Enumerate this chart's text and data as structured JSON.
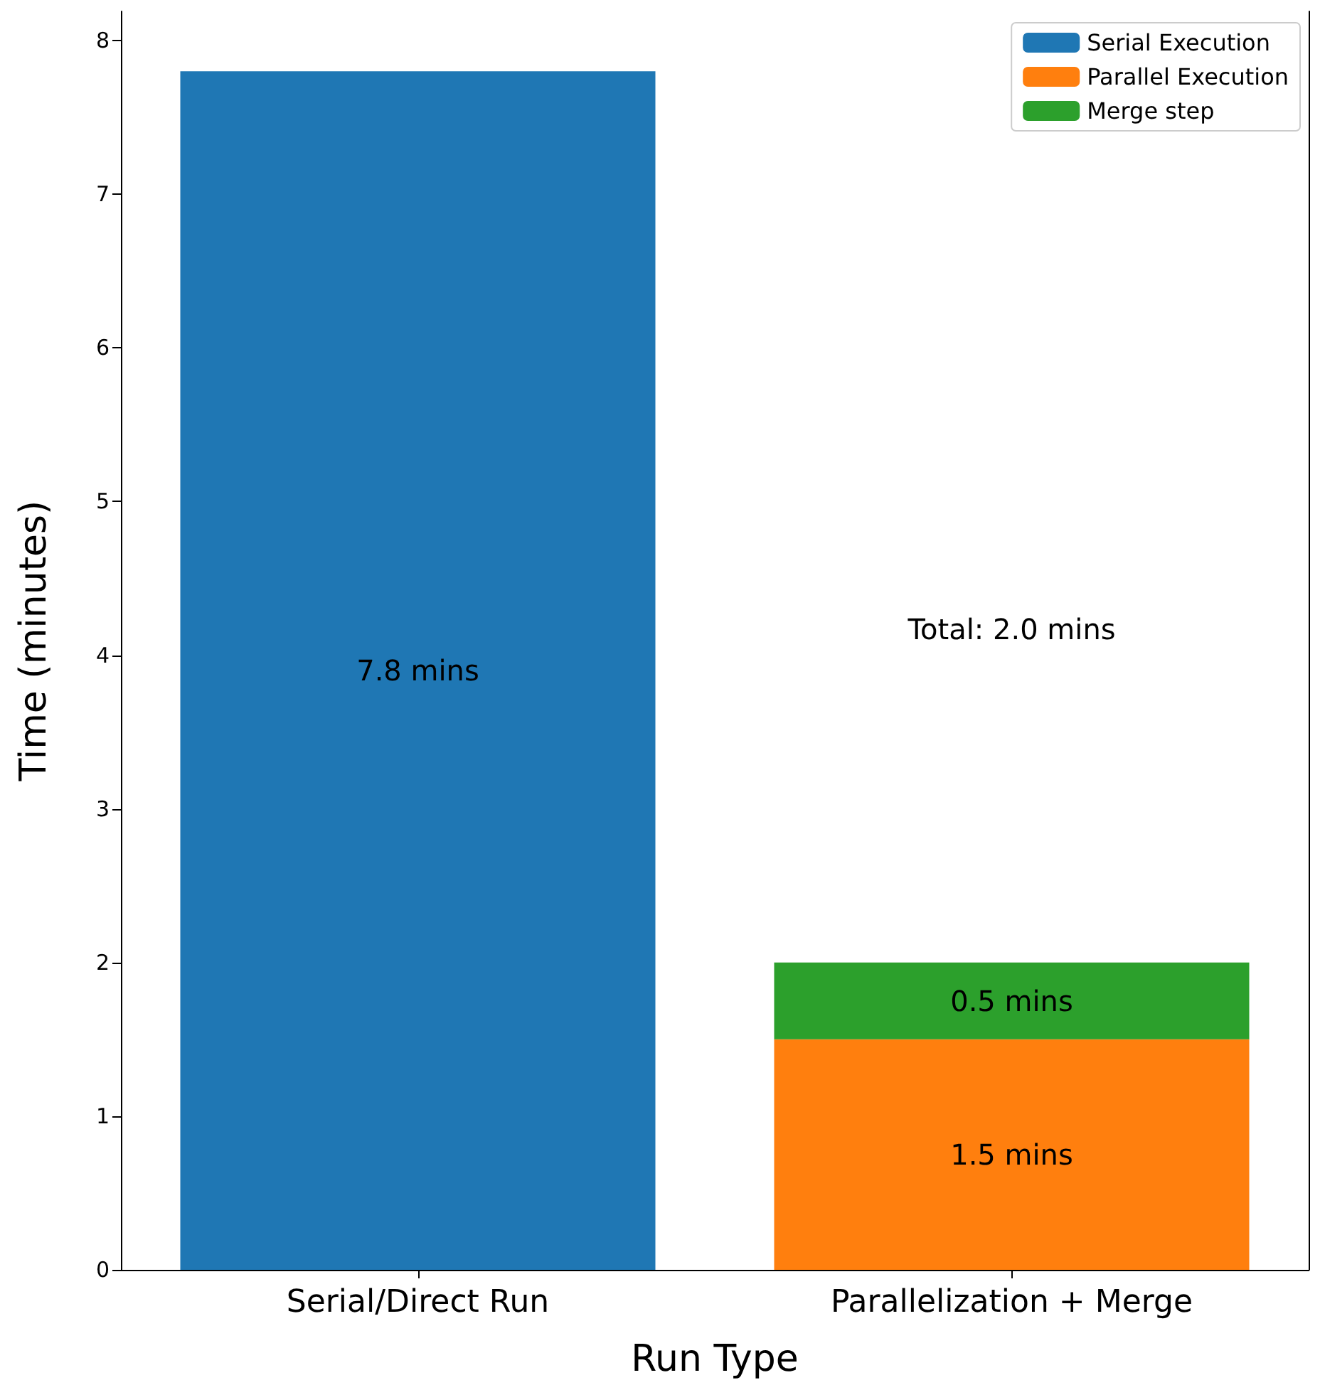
{
  "chart_data": {
    "type": "bar",
    "stacked": true,
    "xlabel": "Run Type",
    "ylabel": "Time (minutes)",
    "categories": [
      "Serial/Direct Run",
      "Parallelization + Merge"
    ],
    "series": [
      {
        "name": "Serial Execution",
        "color": "#1f77b4",
        "values": [
          7.8,
          null
        ],
        "value_labels": [
          "7.8 mins",
          null
        ]
      },
      {
        "name": "Parallel Execution",
        "color": "#ff7f0e",
        "values": [
          null,
          1.5
        ],
        "value_labels": [
          null,
          "1.5 mins"
        ]
      },
      {
        "name": "Merge step",
        "color": "#2ca02c",
        "values": [
          null,
          0.5
        ],
        "value_labels": [
          null,
          "0.5 mins"
        ]
      }
    ],
    "annotations": [
      "Total: 2.0 mins"
    ],
    "ylim": [
      0,
      8.19
    ],
    "yticks": [
      0,
      1,
      2,
      3,
      4,
      5,
      6,
      7,
      8
    ],
    "grid": false,
    "legend": "top right"
  }
}
